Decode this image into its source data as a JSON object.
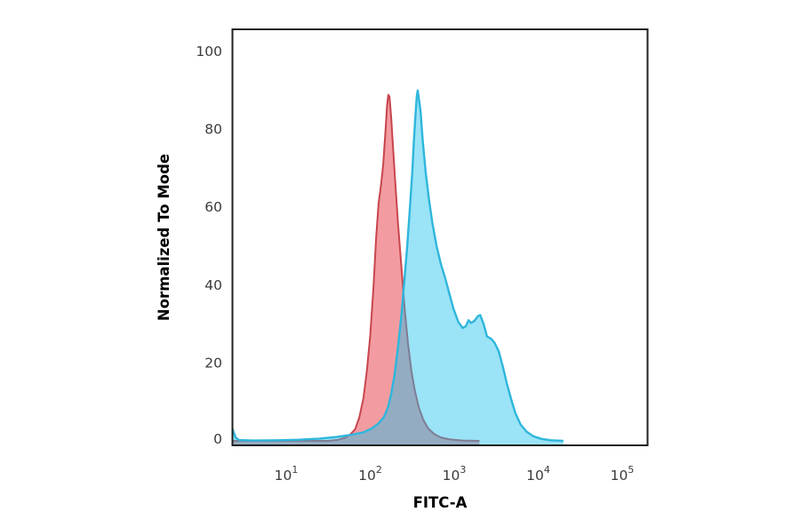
{
  "figure": {
    "background_color": "#ffffff",
    "plot_border_color": "#1f1f1f"
  },
  "chart_data": {
    "type": "area",
    "subtype": "flow-cytometry-overlay-histogram",
    "title": "",
    "xlabel": "FITC-A",
    "ylabel": "Normalized To Mode",
    "x_scale": "log10",
    "x_range_log10": [
      0.355,
      5.32
    ],
    "ylim": [
      0,
      100
    ],
    "grid": false,
    "legend": null,
    "y_ticks": [
      "100",
      "80",
      "60",
      "40",
      "20",
      "0"
    ],
    "x_ticks": [
      {
        "base": "10",
        "exp": "1"
      },
      {
        "base": "10",
        "exp": "2"
      },
      {
        "base": "10",
        "exp": "3"
      },
      {
        "base": "10",
        "exp": "4"
      },
      {
        "base": "10",
        "exp": "5"
      }
    ],
    "colors": {
      "red_fill": "rgba(232,74,84,0.55)",
      "red_stroke": "#c8454e",
      "blue_fill": "rgba(34,194,234,0.45)",
      "blue_stroke": "#2eb6dc",
      "tick_text": "#3b3b3b",
      "axis_line": "#1f1f1f"
    },
    "series": [
      {
        "name": "red-control-histogram",
        "peak": {
          "x_log10": 2.215,
          "mode_x_approx": 160,
          "y": 89
        },
        "fill": "rgba(232,74,84,0.55)",
        "stroke": "#c8454e",
        "stroke_width": 2,
        "points": [
          [
            0.36,
            0
          ],
          [
            1.5,
            0
          ],
          [
            1.62,
            0.3
          ],
          [
            1.7,
            0.8
          ],
          [
            1.76,
            1.6
          ],
          [
            1.82,
            3
          ],
          [
            1.87,
            6
          ],
          [
            1.92,
            11
          ],
          [
            1.96,
            18
          ],
          [
            2.0,
            27
          ],
          [
            2.04,
            40
          ],
          [
            2.07,
            52
          ],
          [
            2.1,
            61
          ],
          [
            2.13,
            66
          ],
          [
            2.155,
            71
          ],
          [
            2.18,
            79
          ],
          [
            2.2,
            86
          ],
          [
            2.215,
            88.9
          ],
          [
            2.23,
            88.4
          ],
          [
            2.25,
            83
          ],
          [
            2.27,
            76
          ],
          [
            2.3,
            66
          ],
          [
            2.33,
            56
          ],
          [
            2.37,
            45
          ],
          [
            2.41,
            34
          ],
          [
            2.45,
            25
          ],
          [
            2.49,
            18
          ],
          [
            2.53,
            13
          ],
          [
            2.58,
            8.5
          ],
          [
            2.63,
            5.5
          ],
          [
            2.69,
            3.2
          ],
          [
            2.76,
            1.8
          ],
          [
            2.84,
            0.9
          ],
          [
            2.94,
            0.4
          ],
          [
            3.1,
            0.1
          ],
          [
            3.3,
            0
          ]
        ]
      },
      {
        "name": "blue-sample-histogram",
        "peak": {
          "x_log10": 2.565,
          "mode_x_approx": 367,
          "y": 90
        },
        "fill": "rgba(34,194,234,0.45)",
        "stroke": "#2eb6dc",
        "stroke_width": 2.4,
        "points": [
          [
            0.355,
            3.5
          ],
          [
            0.375,
            2.2
          ],
          [
            0.4,
            0.8
          ],
          [
            0.44,
            0.2
          ],
          [
            0.6,
            0.1
          ],
          [
            0.9,
            0.15
          ],
          [
            1.15,
            0.3
          ],
          [
            1.4,
            0.6
          ],
          [
            1.6,
            1.0
          ],
          [
            1.78,
            1.6
          ],
          [
            1.92,
            2.2
          ],
          [
            2.02,
            3.2
          ],
          [
            2.1,
            4.5
          ],
          [
            2.16,
            6
          ],
          [
            2.21,
            8.5
          ],
          [
            2.25,
            12
          ],
          [
            2.29,
            17
          ],
          [
            2.33,
            24
          ],
          [
            2.37,
            32
          ],
          [
            2.41,
            42
          ],
          [
            2.44,
            50
          ],
          [
            2.47,
            59
          ],
          [
            2.5,
            69
          ],
          [
            2.52,
            77
          ],
          [
            2.54,
            84
          ],
          [
            2.555,
            88.5
          ],
          [
            2.565,
            90
          ],
          [
            2.585,
            87
          ],
          [
            2.6,
            84.5
          ],
          [
            2.615,
            80
          ],
          [
            2.63,
            76
          ],
          [
            2.66,
            69
          ],
          [
            2.7,
            62
          ],
          [
            2.74,
            56
          ],
          [
            2.79,
            50
          ],
          [
            2.84,
            45.5
          ],
          [
            2.89,
            42
          ],
          [
            2.94,
            38
          ],
          [
            2.99,
            34
          ],
          [
            3.05,
            30.5
          ],
          [
            3.1,
            29
          ],
          [
            3.14,
            29.5
          ],
          [
            3.17,
            31
          ],
          [
            3.2,
            30.3
          ],
          [
            3.24,
            30.8
          ],
          [
            3.28,
            32
          ],
          [
            3.31,
            32.3
          ],
          [
            3.35,
            30
          ],
          [
            3.39,
            26.8
          ],
          [
            3.44,
            26.2
          ],
          [
            3.48,
            25.2
          ],
          [
            3.53,
            23
          ],
          [
            3.58,
            19
          ],
          [
            3.63,
            14.5
          ],
          [
            3.68,
            10.5
          ],
          [
            3.73,
            7
          ],
          [
            3.79,
            4.2
          ],
          [
            3.86,
            2.4
          ],
          [
            3.94,
            1.2
          ],
          [
            4.04,
            0.5
          ],
          [
            4.15,
            0.15
          ],
          [
            4.3,
            0
          ]
        ]
      }
    ]
  }
}
